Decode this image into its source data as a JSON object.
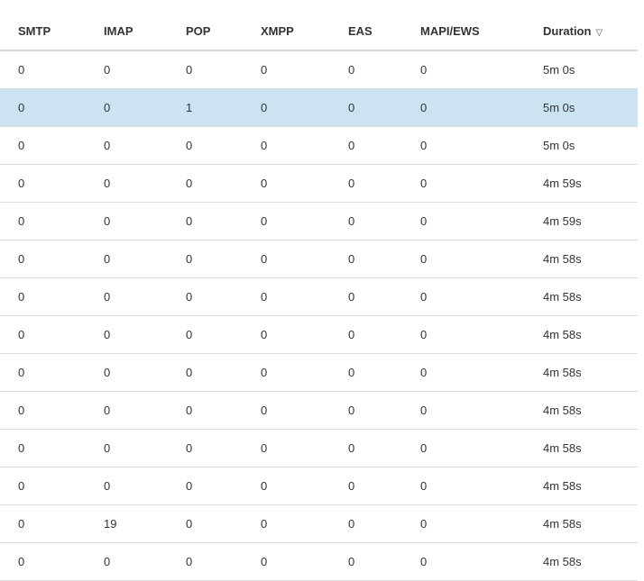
{
  "table": {
    "columns": [
      "SMTP",
      "IMAP",
      "POP",
      "XMPP",
      "EAS",
      "MAPI/EWS",
      "Duration"
    ],
    "sort": {
      "column": "Duration",
      "direction": "descending",
      "icon": "triangle-down-outline-icon"
    },
    "selected_row": 1,
    "selected_color": "#cce4f2",
    "rows": [
      [
        "0",
        "0",
        "0",
        "0",
        "0",
        "0",
        "5m 0s"
      ],
      [
        "0",
        "0",
        "1",
        "0",
        "0",
        "0",
        "5m 0s"
      ],
      [
        "0",
        "0",
        "0",
        "0",
        "0",
        "0",
        "5m 0s"
      ],
      [
        "0",
        "0",
        "0",
        "0",
        "0",
        "0",
        "4m 59s"
      ],
      [
        "0",
        "0",
        "0",
        "0",
        "0",
        "0",
        "4m 59s"
      ],
      [
        "0",
        "0",
        "0",
        "0",
        "0",
        "0",
        "4m 58s"
      ],
      [
        "0",
        "0",
        "0",
        "0",
        "0",
        "0",
        "4m 58s"
      ],
      [
        "0",
        "0",
        "0",
        "0",
        "0",
        "0",
        "4m 58s"
      ],
      [
        "0",
        "0",
        "0",
        "0",
        "0",
        "0",
        "4m 58s"
      ],
      [
        "0",
        "0",
        "0",
        "0",
        "0",
        "0",
        "4m 58s"
      ],
      [
        "0",
        "0",
        "0",
        "0",
        "0",
        "0",
        "4m 58s"
      ],
      [
        "0",
        "0",
        "0",
        "0",
        "0",
        "0",
        "4m 58s"
      ],
      [
        "0",
        "19",
        "0",
        "0",
        "0",
        "0",
        "4m 58s"
      ],
      [
        "0",
        "0",
        "0",
        "0",
        "0",
        "0",
        "4m 58s"
      ]
    ]
  }
}
